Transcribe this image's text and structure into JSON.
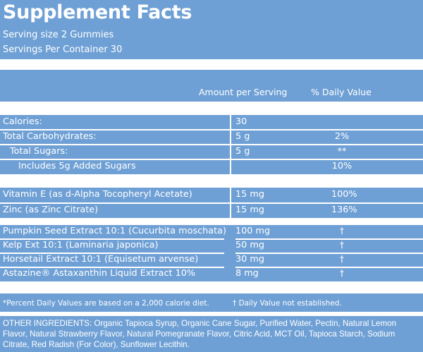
{
  "title": "Supplement Facts",
  "serving_size": "Serving size 2 Gummies",
  "servings_per_container": "Servings Per Container  30",
  "header": {
    "amount": "Amount per Serving",
    "daily_value": "% Daily Value"
  },
  "rows": [
    {
      "name": "Calories:",
      "amount": "30",
      "dv": ""
    },
    {
      "name": "Total Carbohydrates:",
      "amount": "5 g",
      "dv": "2%"
    },
    {
      "name": "Total Sugars:",
      "amount": "5  g",
      "dv": "**"
    },
    {
      "name": "Includes 5g Added Sugars",
      "amount": "",
      "dv": "10%"
    },
    {
      "name": "Vitamin E (as d-Alpha Tocopheryl Acetate)",
      "amount": "15  mg",
      "dv": "100%"
    },
    {
      "name": "Zinc (as Zinc Citrate)",
      "amount": "15  mg",
      "dv": "136%"
    },
    {
      "name": "Pumpkin Seed Extract 10:1 (Cucurbita moschata)",
      "amount": "100  mg",
      "dv": "†"
    },
    {
      "name": "Kelp Ext 10:1 (Laminaria japonica)",
      "amount": "50  mg",
      "dv": "†"
    },
    {
      "name": "Horsetail Extract 10:1 (Equisetum arvense)",
      "amount": "30  mg",
      "dv": "†"
    },
    {
      "name": "Astazine® Astaxanthin Liquid Extract 10%",
      "amount": "8  mg",
      "dv": "†"
    }
  ],
  "footnote_dv": "*Percent Daily Values are based on a 2,000 calorie diet.",
  "footnote_dagger": "† Daily Value not established.",
  "other_ingredients": "OTHER INGREDIENTS: Organic Tapioca Syrup, Organic Cane Sugar, Purified Water, Pectin, Natural Lemon Flavor, Natural Strawberry Flavor, Natural Pomegranate Flavor, Citric Acid, MCT Oil, Tapioca Starch, Sodium Citrate, Red Radish (For Color), Sunflower Lecithin."
}
